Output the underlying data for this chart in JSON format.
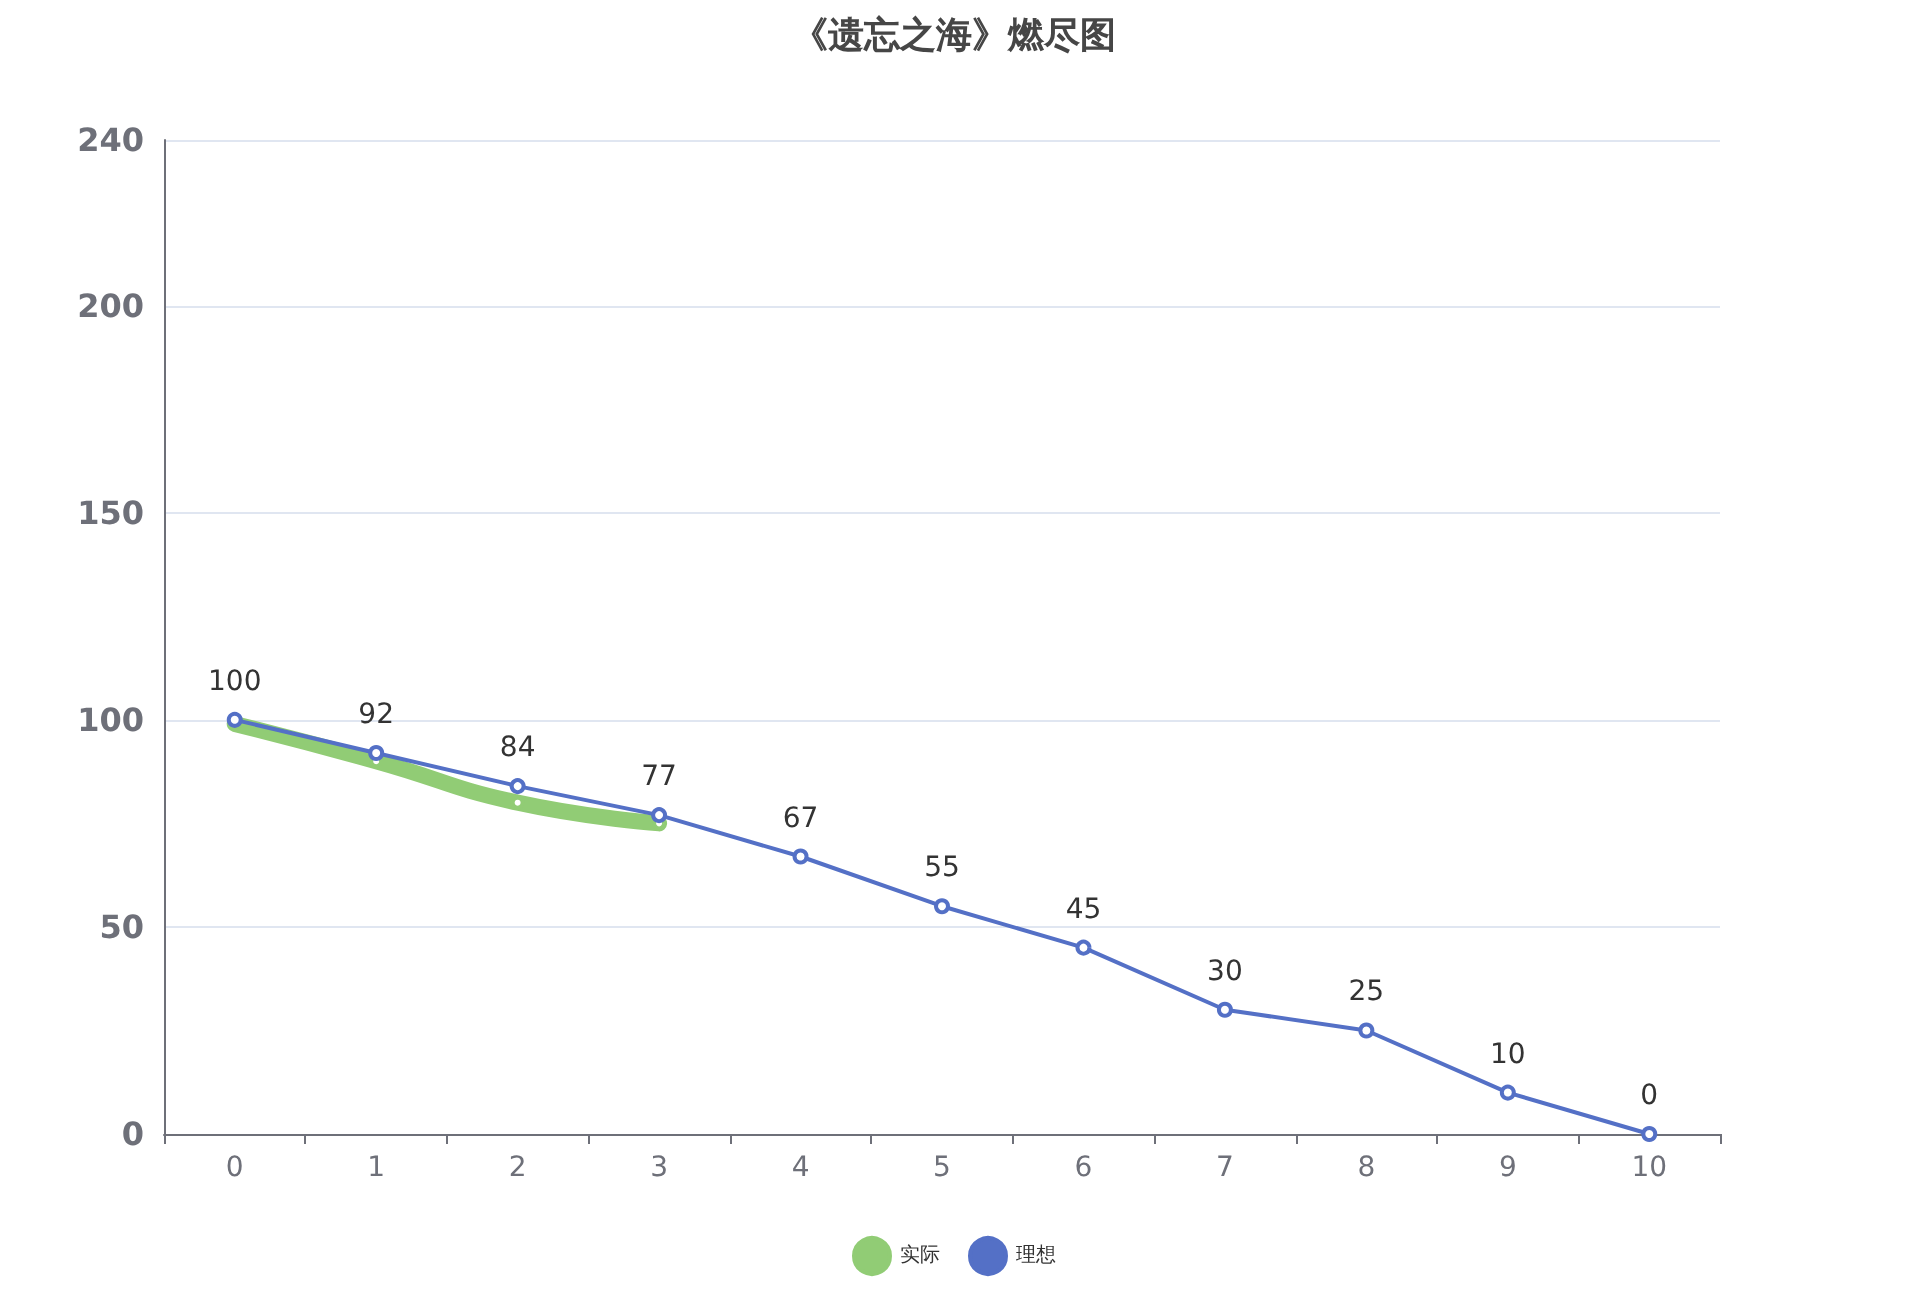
{
  "chart_data": {
    "type": "line",
    "title": "《遗忘之海》燃尽图",
    "categories": [
      "0",
      "1",
      "2",
      "3",
      "4",
      "5",
      "6",
      "7",
      "8",
      "9",
      "10"
    ],
    "series": [
      {
        "name": "实际",
        "color": "#91cc75",
        "values": [
          99,
          90,
          80,
          75,
          null,
          null,
          null,
          null,
          null,
          null,
          null
        ]
      },
      {
        "name": "理想",
        "color": "#5470c6",
        "values": [
          100,
          92,
          84,
          77,
          67,
          55,
          45,
          30,
          25,
          10,
          0
        ],
        "value_labels": [
          "100",
          "92",
          "84",
          "77",
          "67",
          "55",
          "45",
          "30",
          "25",
          "10",
          "0"
        ]
      }
    ],
    "ylim": [
      0,
      240
    ],
    "yticks": [
      0,
      50,
      100,
      150,
      200,
      240
    ],
    "grid": "y",
    "legend": "bottom",
    "marker": "circle"
  }
}
